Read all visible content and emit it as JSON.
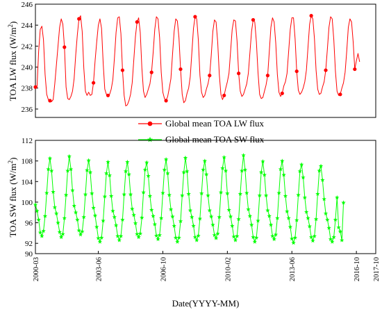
{
  "chart_data": [
    {
      "type": "line",
      "ylabel_prefix": "TOA LW flux (W/m",
      "ylabel_sup": "2",
      "ylabel_suffix": ")",
      "ylim": [
        235.2,
        246
      ],
      "yticks": [
        236,
        238,
        240,
        242,
        244,
        246
      ],
      "xlim": [
        "2000-03",
        "2017-10"
      ],
      "series": [
        {
          "name": "Global mean TOA LW flux",
          "color": "#ff0000",
          "marker": "circle",
          "monthly_values": [
            238.1,
            238.1,
            241.5,
            243.6,
            243.9,
            242.6,
            239.3,
            237.4,
            236.9,
            236.8,
            236.7,
            236.9,
            238.4,
            240.2,
            242.0,
            243.8,
            244.6,
            244.1,
            241.9,
            238.1,
            237.0,
            236.9,
            237.2,
            237.7,
            238.9,
            241.2,
            243.1,
            244.6,
            244.9,
            243.4,
            239.9,
            237.7,
            237.3,
            237.6,
            237.3,
            237.4,
            238.5,
            240.6,
            242.4,
            244.0,
            244.6,
            243.7,
            240.4,
            237.9,
            237.4,
            237.3,
            237.4,
            237.9,
            238.8,
            240.9,
            243.3,
            244.7,
            244.8,
            243.2,
            239.7,
            237.3,
            236.3,
            236.4,
            236.8,
            237.4,
            238.5,
            240.7,
            242.9,
            244.3,
            244.7,
            243.3,
            239.9,
            237.7,
            237.1,
            237.4,
            237.9,
            238.4,
            239.5,
            241.4,
            243.6,
            244.8,
            244.6,
            242.8,
            239.5,
            237.6,
            237.0,
            236.8,
            237.2,
            238.0,
            238.9,
            241.2,
            243.4,
            244.6,
            244.4,
            242.8,
            239.8,
            237.4,
            236.6,
            236.8,
            237.5,
            238.0,
            239.1,
            241.4,
            243.7,
            244.8,
            244.6,
            242.6,
            239.2,
            237.6,
            237.1,
            237.3,
            237.9,
            238.4,
            239.2,
            241.1,
            243.4,
            244.5,
            244.3,
            242.4,
            239.3,
            237.4,
            236.9,
            237.3,
            238.0,
            238.6,
            239.4,
            241.5,
            243.6,
            244.5,
            244.4,
            242.5,
            239.4,
            237.7,
            237.2,
            237.4,
            237.9,
            238.4,
            239.4,
            241.4,
            243.4,
            244.5,
            244.3,
            242.4,
            239.5,
            237.4,
            237.0,
            237.1,
            237.7,
            238.3,
            239.2,
            241.5,
            243.8,
            244.7,
            244.3,
            242.3,
            239.3,
            237.6,
            237.2,
            237.5,
            238.2,
            238.6,
            239.4,
            241.5,
            243.6,
            244.7,
            244.7,
            242.7,
            239.6,
            237.8,
            237.4,
            237.6,
            238.0,
            238.6,
            239.7,
            241.9,
            244.1,
            244.9,
            244.6,
            242.7,
            239.7,
            237.9,
            237.4,
            237.5,
            238.1,
            238.6,
            239.7,
            241.7,
            243.8,
            244.8,
            244.6,
            242.6,
            239.6,
            237.7,
            237.3,
            237.4,
            238.0,
            238.5,
            239.5,
            241.5,
            243.8,
            244.6,
            244.3,
            242.4,
            239.8,
            240.6,
            241.3,
            240.5
          ]
        }
      ]
    },
    {
      "type": "line",
      "ylabel_prefix": "TOA SW flux (W/m",
      "ylabel_sup": "2",
      "ylabel_suffix": ")",
      "ylim": [
        90,
        112
      ],
      "yticks": [
        90,
        92,
        96,
        100,
        104,
        108,
        112
      ],
      "xlim": [
        "2000-03",
        "2017-10"
      ],
      "xlabel": "Date(YYYY-MM)",
      "xtick_labels": [
        "2000-03",
        "2003-06",
        "2006-10",
        "2010-02",
        "2013-06",
        "2016-10",
        "2017-10"
      ],
      "series": [
        {
          "name": "Global mean TOA SW flux",
          "color": "#00ff00",
          "marker": "star",
          "monthly_values": [
            99.5,
            98.3,
            96.6,
            94.1,
            93.4,
            94.4,
            97.3,
            101.8,
            106.4,
            108.5,
            106.1,
            102.0,
            99.0,
            97.8,
            96.0,
            94.2,
            93.2,
            93.8,
            96.9,
            101.4,
            106.1,
            108.9,
            106.4,
            102.3,
            99.3,
            98.0,
            96.6,
            94.5,
            93.7,
            94.3,
            97.1,
            101.5,
            106.2,
            108.1,
            105.8,
            101.7,
            98.9,
            97.4,
            95.2,
            93.0,
            92.3,
            93.1,
            96.4,
            101.1,
            105.6,
            107.8,
            105.2,
            101.2,
            98.3,
            97.1,
            95.5,
            93.4,
            92.6,
            93.4,
            96.6,
            101.5,
            106.0,
            107.8,
            105.4,
            101.5,
            98.7,
            97.5,
            95.9,
            93.8,
            93.2,
            93.9,
            97.0,
            101.9,
            106.3,
            107.7,
            105.1,
            101.2,
            98.5,
            97.3,
            95.7,
            93.5,
            92.8,
            93.6,
            96.9,
            101.8,
            106.3,
            108.3,
            105.6,
            101.4,
            98.6,
            97.2,
            95.4,
            93.1,
            92.3,
            93.1,
            96.3,
            101.3,
            105.8,
            108.6,
            106.0,
            101.6,
            98.4,
            97.1,
            95.4,
            93.2,
            92.6,
            93.5,
            96.8,
            101.7,
            106.3,
            108.0,
            105.4,
            101.3,
            98.4,
            97.2,
            95.6,
            93.6,
            93.0,
            93.9,
            97.1,
            101.9,
            106.6,
            108.7,
            106.1,
            101.7,
            98.5,
            97.2,
            95.4,
            93.3,
            92.6,
            93.4,
            96.7,
            101.6,
            106.1,
            109.1,
            106.3,
            101.8,
            98.6,
            97.3,
            95.6,
            93.2,
            92.3,
            93.1,
            96.4,
            101.3,
            105.8,
            107.9,
            105.3,
            101.3,
            98.4,
            97.3,
            95.6,
            93.4,
            92.8,
            93.7,
            96.9,
            101.8,
            106.4,
            108.0,
            105.3,
            101.2,
            98.2,
            96.9,
            95.2,
            92.9,
            92.1,
            93.1,
            96.5,
            101.4,
            106.0,
            107.3,
            104.8,
            100.9,
            98.1,
            96.9,
            95.3,
            93.2,
            92.5,
            93.4,
            96.7,
            101.6,
            106.1,
            107.0,
            104.3,
            100.6,
            97.8,
            96.6,
            95.0,
            92.8,
            92.3,
            93.2,
            96.6,
            100.9,
            95.1,
            94.3,
            92.6,
            99.9
          ]
        }
      ]
    }
  ]
}
